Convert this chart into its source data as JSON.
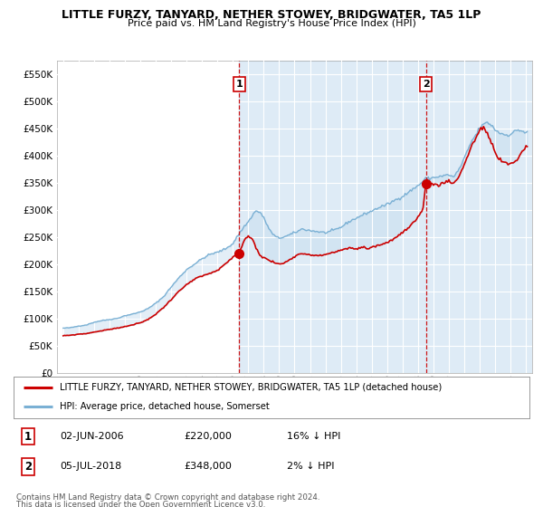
{
  "title": "LITTLE FURZY, TANYARD, NETHER STOWEY, BRIDGWATER, TA5 1LP",
  "subtitle": "Price paid vs. HM Land Registry's House Price Index (HPI)",
  "legend_label_red": "LITTLE FURZY, TANYARD, NETHER STOWEY, BRIDGWATER, TA5 1LP (detached house)",
  "legend_label_blue": "HPI: Average price, detached house, Somerset",
  "annotation1_date": "02-JUN-2006",
  "annotation1_price": "£220,000",
  "annotation1_hpi": "16% ↓ HPI",
  "annotation2_date": "05-JUL-2018",
  "annotation2_price": "£348,000",
  "annotation2_hpi": "2% ↓ HPI",
  "footer": "Contains HM Land Registry data © Crown copyright and database right 2024.\nThis data is licensed under the Open Government Licence v3.0.",
  "chart_bg": "#dce9f5",
  "white": "#ffffff",
  "red_color": "#cc0000",
  "blue_color": "#7ab0d4",
  "fill_color": "#c8dff0",
  "grid_color": "#ffffff",
  "ylim": [
    0,
    575000
  ],
  "yticks": [
    0,
    50000,
    100000,
    150000,
    200000,
    250000,
    300000,
    350000,
    400000,
    450000,
    500000,
    550000
  ],
  "sale1_year": 2006.42,
  "sale1_value": 220000,
  "sale2_year": 2018.51,
  "sale2_value": 348000,
  "start_year": 1995,
  "end_year": 2025
}
